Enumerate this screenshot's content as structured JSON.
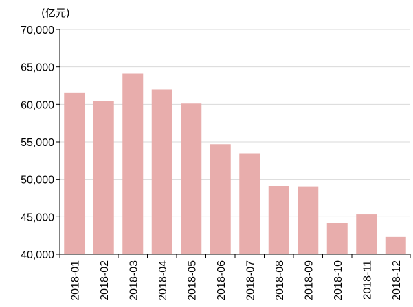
{
  "chart_data": {
    "type": "bar",
    "unit_label": "(亿元)",
    "categories": [
      "2018-01",
      "2018-02",
      "2018-03",
      "2018-04",
      "2018-05",
      "2018-06",
      "2018-07",
      "2018-08",
      "2018-09",
      "2018-10",
      "2018-11",
      "2018-12"
    ],
    "values": [
      61600,
      60400,
      64100,
      62000,
      60100,
      54700,
      53400,
      49100,
      49000,
      44200,
      45300,
      42300
    ],
    "ylim": [
      40000,
      70000
    ],
    "yticks": [
      40000,
      45000,
      50000,
      55000,
      60000,
      65000,
      70000
    ],
    "ytick_labels": [
      "40,000",
      "45,000",
      "50,000",
      "55,000",
      "60,000",
      "65,000",
      "70,000"
    ],
    "grid": true,
    "legend": "none",
    "bar_color": "#e8adac",
    "grid_color": "#d9d9d9",
    "axis_color": "#000000"
  }
}
